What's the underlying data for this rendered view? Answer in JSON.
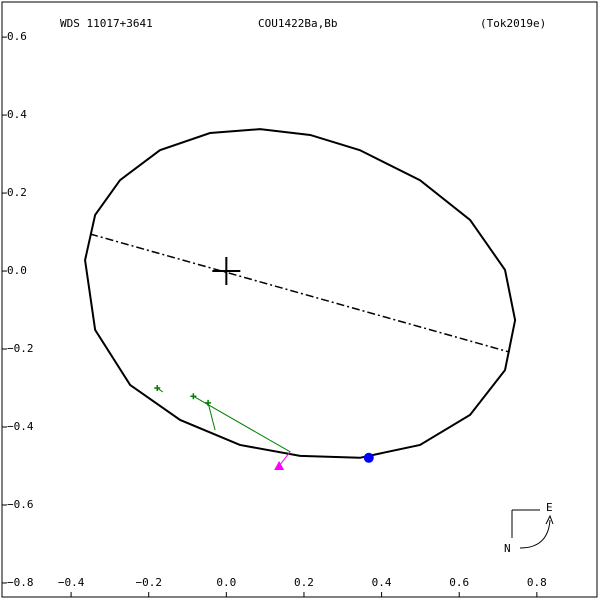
{
  "chart_data": {
    "type": "orbit",
    "title": "WDS 11017+3641",
    "subtitle": "COU1422Ba,Bb",
    "reference": "(Tok2019e)",
    "xlim": [
      -0.578,
      0.955
    ],
    "ylim": [
      -0.836,
      0.69
    ],
    "xticks": [
      {
        "value": -0.4,
        "label": "−0.4"
      },
      {
        "value": -0.2,
        "label": "−0.2"
      },
      {
        "value": 0,
        "label": "0.0"
      },
      0.2,
      0.4,
      0.6,
      0.8
    ],
    "yticks": [
      {
        "value": -0.8,
        "label": "−0.8"
      },
      {
        "value": -0.6,
        "label": "−0.6"
      },
      {
        "value": -0.4,
        "label": "−0.4"
      },
      {
        "value": -0.2,
        "label": "−0.2"
      },
      {
        "value": 0,
        "label": "0.0"
      },
      0.2,
      0.4,
      0.6
    ],
    "orbit": {
      "color": "#000000",
      "x": [
        -0.364,
        -0.338,
        -0.274,
        -0.171,
        -0.042,
        0.087,
        0.216,
        0.344,
        0.499,
        0.628,
        0.718,
        0.744,
        0.718,
        0.628,
        0.499,
        0.344,
        0.19,
        0.035,
        -0.119,
        -0.248,
        -0.338
      ],
      "y": [
        0.028,
        0.144,
        0.233,
        0.31,
        0.354,
        0.364,
        0.349,
        0.31,
        0.233,
        0.131,
        0.003,
        -0.126,
        -0.254,
        -0.369,
        -0.446,
        -0.479,
        -0.474,
        -0.446,
        -0.382,
        -0.292,
        -0.151
      ]
    },
    "node_line": {
      "color": "#000000",
      "x": [
        -0.351,
        0.73
      ],
      "y": [
        0.095,
        -0.208
      ]
    },
    "observations": {
      "color": "#008000",
      "x": [
        -0.178,
        -0.085,
        -0.047
      ],
      "y": [
        -0.3,
        -0.321,
        -0.338
      ],
      "pred_x": [
        -0.164,
        0.165,
        -0.029
      ],
      "pred_y": [
        -0.31,
        -0.464,
        -0.408
      ]
    },
    "predicted": {
      "color": "#ff00ff",
      "x": [
        0.136
      ],
      "y": [
        -0.5
      ],
      "pred_x": [
        0.164
      ],
      "pred_y": [
        -0.464
      ]
    },
    "current": {
      "color": "#0000ff",
      "x": [
        0.367
      ],
      "y": [
        -0.479
      ]
    },
    "compass": {
      "east": "E",
      "north": "N"
    }
  }
}
